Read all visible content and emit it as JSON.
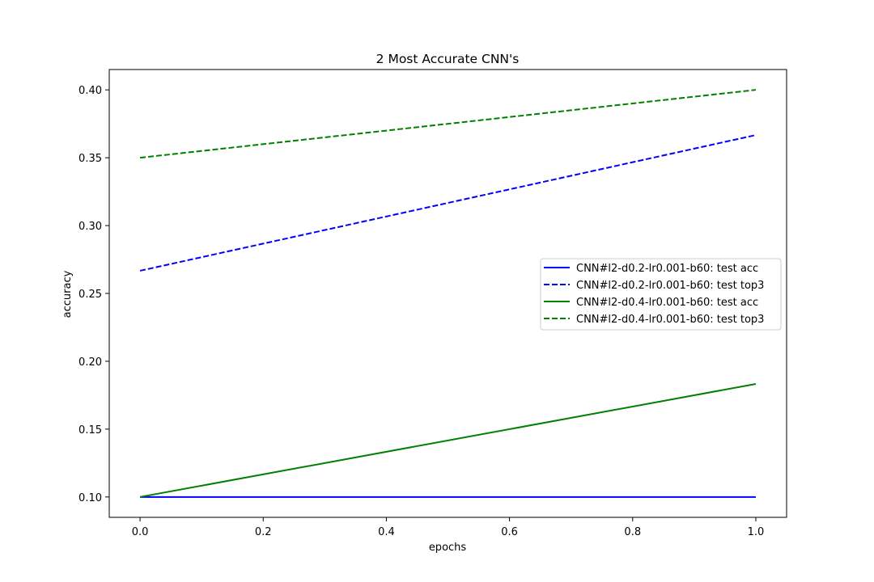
{
  "chart_data": {
    "type": "line",
    "title": "2 Most Accurate CNN's",
    "xlabel": "epochs",
    "ylabel": "accuracy",
    "x": [
      0,
      1
    ],
    "xlim": [
      -0.05,
      1.05
    ],
    "ylim": [
      0.085,
      0.415
    ],
    "xticks": [
      0.0,
      0.2,
      0.4,
      0.6,
      0.8,
      1.0
    ],
    "xtick_labels": [
      "0.0",
      "0.2",
      "0.4",
      "0.6",
      "0.8",
      "1.0"
    ],
    "yticks": [
      0.1,
      0.15,
      0.2,
      0.25,
      0.3,
      0.35,
      0.4
    ],
    "ytick_labels": [
      "0.10",
      "0.15",
      "0.20",
      "0.25",
      "0.30",
      "0.35",
      "0.40"
    ],
    "grid": false,
    "legend_position": "center-right",
    "series": [
      {
        "name": "CNN#l2-d0.2-lr0.001-b60: test acc",
        "values": [
          0.1,
          0.1
        ],
        "color": "#0000ff",
        "style": "solid"
      },
      {
        "name": "CNN#l2-d0.2-lr0.001-b60: test top3",
        "values": [
          0.2667,
          0.3667
        ],
        "color": "#0000ff",
        "style": "dashed"
      },
      {
        "name": "CNN#l2-d0.4-lr0.001-b60: test acc",
        "values": [
          0.1,
          0.1833
        ],
        "color": "#008000",
        "style": "solid"
      },
      {
        "name": "CNN#l2-d0.4-lr0.001-b60: test top3",
        "values": [
          0.35,
          0.4
        ],
        "color": "#008000",
        "style": "dashed"
      }
    ]
  }
}
